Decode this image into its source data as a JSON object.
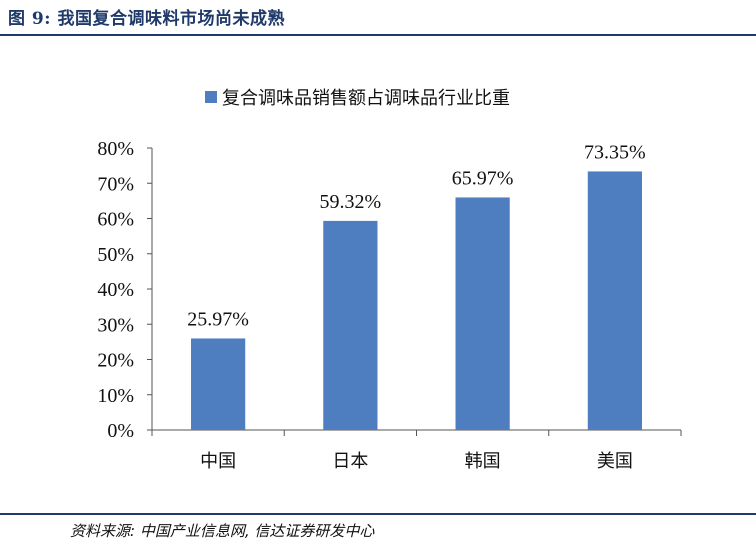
{
  "figure": {
    "title": "图 9:  我国复合调味料市场尚未成熟",
    "source": "资料来源: 中国产业信息网, 信达证券研发中心"
  },
  "chart_data": {
    "type": "bar",
    "categories": [
      "中国",
      "日本",
      "韩国",
      "美国"
    ],
    "series": [
      {
        "name": "复合调味品销售额占调味品行业比重",
        "values": [
          25.97,
          59.32,
          65.97,
          73.35
        ],
        "color": "#4f7ec0"
      }
    ],
    "data_labels": [
      "25.97%",
      "59.32%",
      "65.97%",
      "73.35%"
    ],
    "y_ticks": [
      "0%",
      "10%",
      "20%",
      "30%",
      "40%",
      "50%",
      "60%",
      "70%",
      "80%"
    ],
    "ylim": [
      0,
      80
    ],
    "grid": false,
    "legend_position": "top-center"
  }
}
